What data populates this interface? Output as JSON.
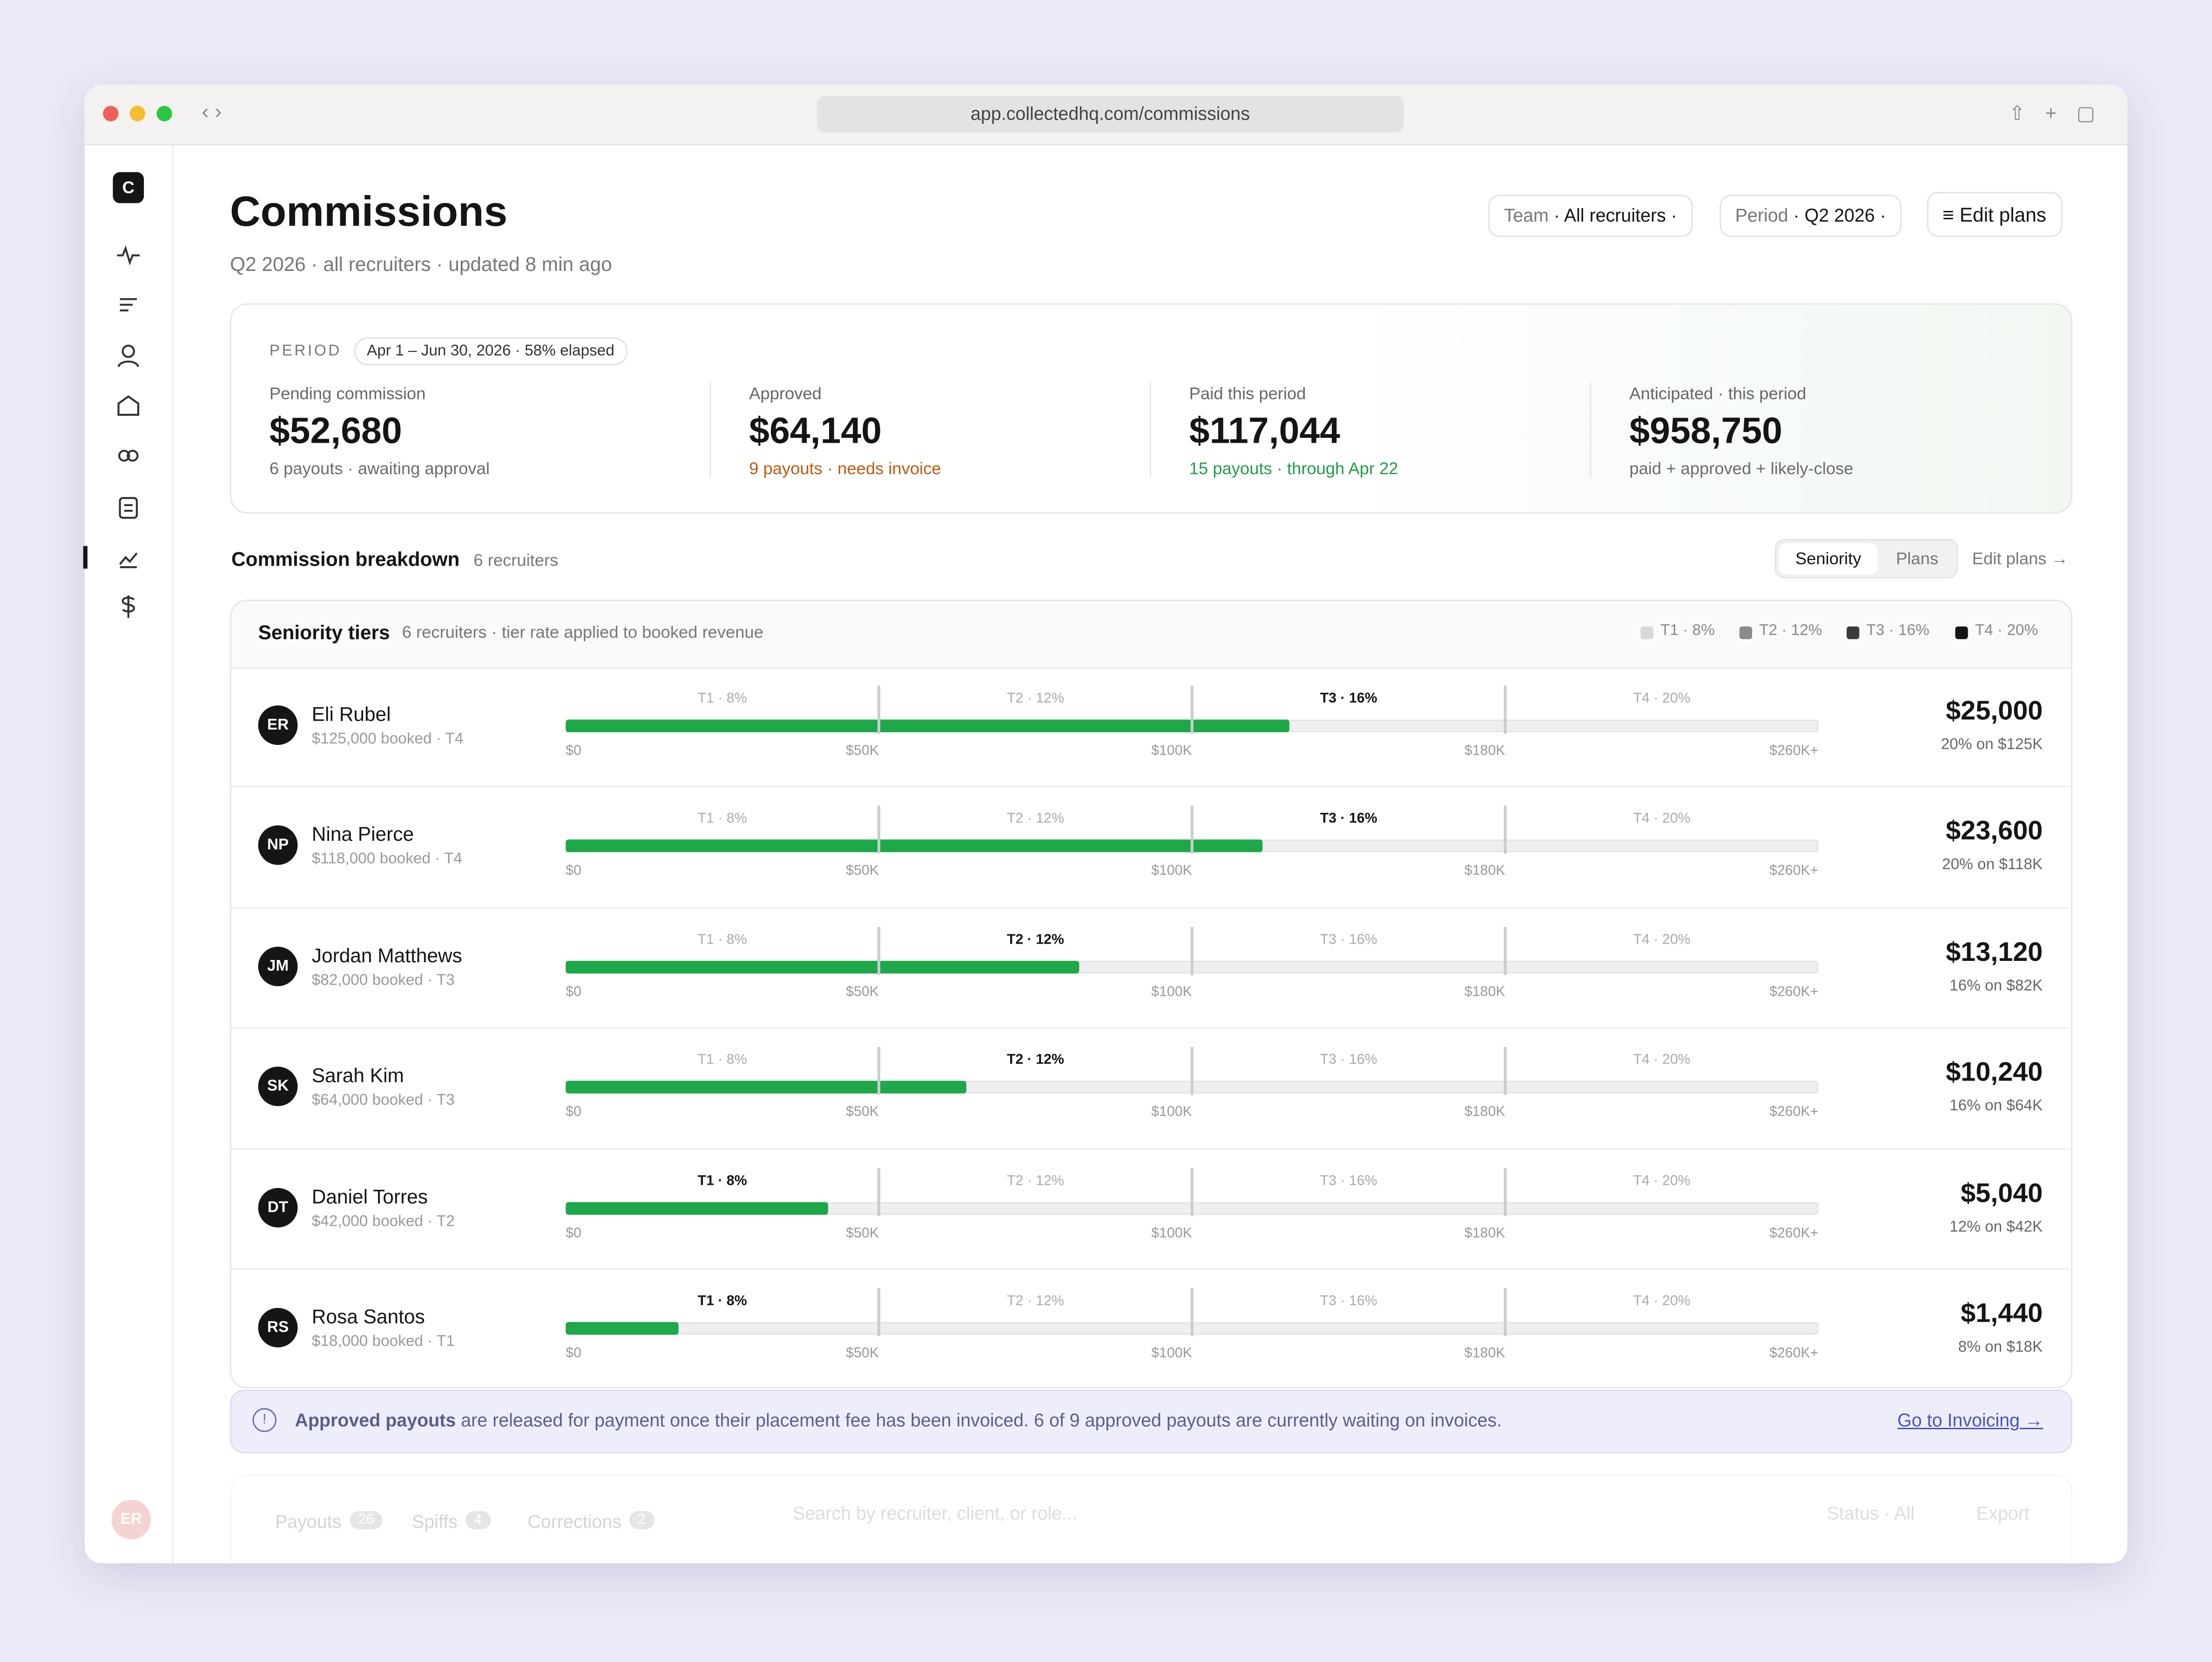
{
  "browser": {
    "url": "app.collectedhq.com/commissions"
  },
  "sidebar": {
    "logo": "C",
    "user_initials": "ER"
  },
  "header": {
    "title": "Commissions",
    "subtitle": "Q2 2026 · all recruiters · updated 8 min ago",
    "filters": [
      {
        "label": "Team",
        "value": "All recruiters"
      },
      {
        "label": "Period",
        "value": "Q2 2026"
      }
    ],
    "edit_button": "Edit plans"
  },
  "period": {
    "label": "PERIOD",
    "range": "Apr 1 – Jun 30, 2026 · 58% elapsed"
  },
  "kpis": [
    {
      "label": "Pending commission",
      "value": "$52,680",
      "note": "6 payouts · awaiting approval",
      "note_color": "#6b6b6b"
    },
    {
      "label": "Approved",
      "value": "$64,140",
      "note": "9 payouts · needs invoice",
      "note_color": "#c2590c"
    },
    {
      "label": "Paid this period",
      "value": "$117,044",
      "note": "15 payouts · through Apr 22",
      "note_color": "#1f9d48"
    },
    {
      "label": "Anticipated · this period",
      "value": "$958,750",
      "note": "paid + approved + likely-close",
      "note_color": "#6b6b6b"
    }
  ],
  "breakdown": {
    "title": "Commission breakdown",
    "count": "6 recruiters",
    "toggle": [
      "Seniority",
      "Plans"
    ],
    "link": "Edit plans →"
  },
  "tiers_panel": {
    "title": "Seniority tiers",
    "note": "6 recruiters · tier rate applied to booked revenue",
    "tiers": [
      {
        "label": "T1 · 8%",
        "color": "#d9d9d9"
      },
      {
        "label": "T2 · 12%",
        "color": "#8a8a8a"
      },
      {
        "label": "T3 · 16%",
        "color": "#3a3a3a"
      },
      {
        "label": "T4 · 20%",
        "color": "#151515"
      }
    ],
    "bar_color": "#1ea84a",
    "scale": [
      {
        "value": 0,
        "label": "$0"
      },
      {
        "value": 50000,
        "label": "$50K"
      },
      {
        "value": 100000,
        "label": "$100K"
      },
      {
        "value": 180000,
        "label": "$180K"
      },
      {
        "value": 260000,
        "label": "$260K+"
      }
    ],
    "rows": [
      {
        "initials": "ER",
        "name": "Eli Rubel",
        "booked_label": "$125,000 booked · T4",
        "booked": 125000,
        "payout": "$25,000",
        "rate_label": "20% on $125K"
      },
      {
        "initials": "NP",
        "name": "Nina Pierce",
        "booked_label": "$118,000 booked · T4",
        "booked": 118000,
        "payout": "$23,600",
        "rate_label": "20% on $118K"
      },
      {
        "initials": "JM",
        "name": "Jordan Matthews",
        "booked_label": "$82,000 booked · T3",
        "booked": 82000,
        "payout": "$13,120",
        "rate_label": "16% on $82K"
      },
      {
        "initials": "SK",
        "name": "Sarah Kim",
        "booked_label": "$64,000 booked · T3",
        "booked": 64000,
        "payout": "$10,240",
        "rate_label": "16% on $64K"
      },
      {
        "initials": "DT",
        "name": "Daniel Torres",
        "booked_label": "$42,000 booked · T2",
        "booked": 42000,
        "payout": "$5,040",
        "rate_label": "12% on $42K"
      },
      {
        "initials": "RS",
        "name": "Rosa Santos",
        "booked_label": "$18,000 booked · T1",
        "booked": 18000,
        "payout": "$1,440",
        "rate_label": "8% on $18K"
      }
    ]
  },
  "banner": {
    "bold": "Approved payouts",
    "text": "are released for payment once their placement fee has been invoiced. 6 of 9 approved payouts are currently waiting on invoices.",
    "link": "Go to Invoicing →"
  },
  "footer": {
    "tabs": [
      {
        "label": "Payouts",
        "count": 26
      },
      {
        "label": "Spiffs",
        "count": 4
      },
      {
        "label": "Corrections",
        "count": 2
      }
    ],
    "search": "Search by recruiter, client, or role...",
    "status_label": "Status",
    "status_value": "All",
    "export": "Export"
  }
}
